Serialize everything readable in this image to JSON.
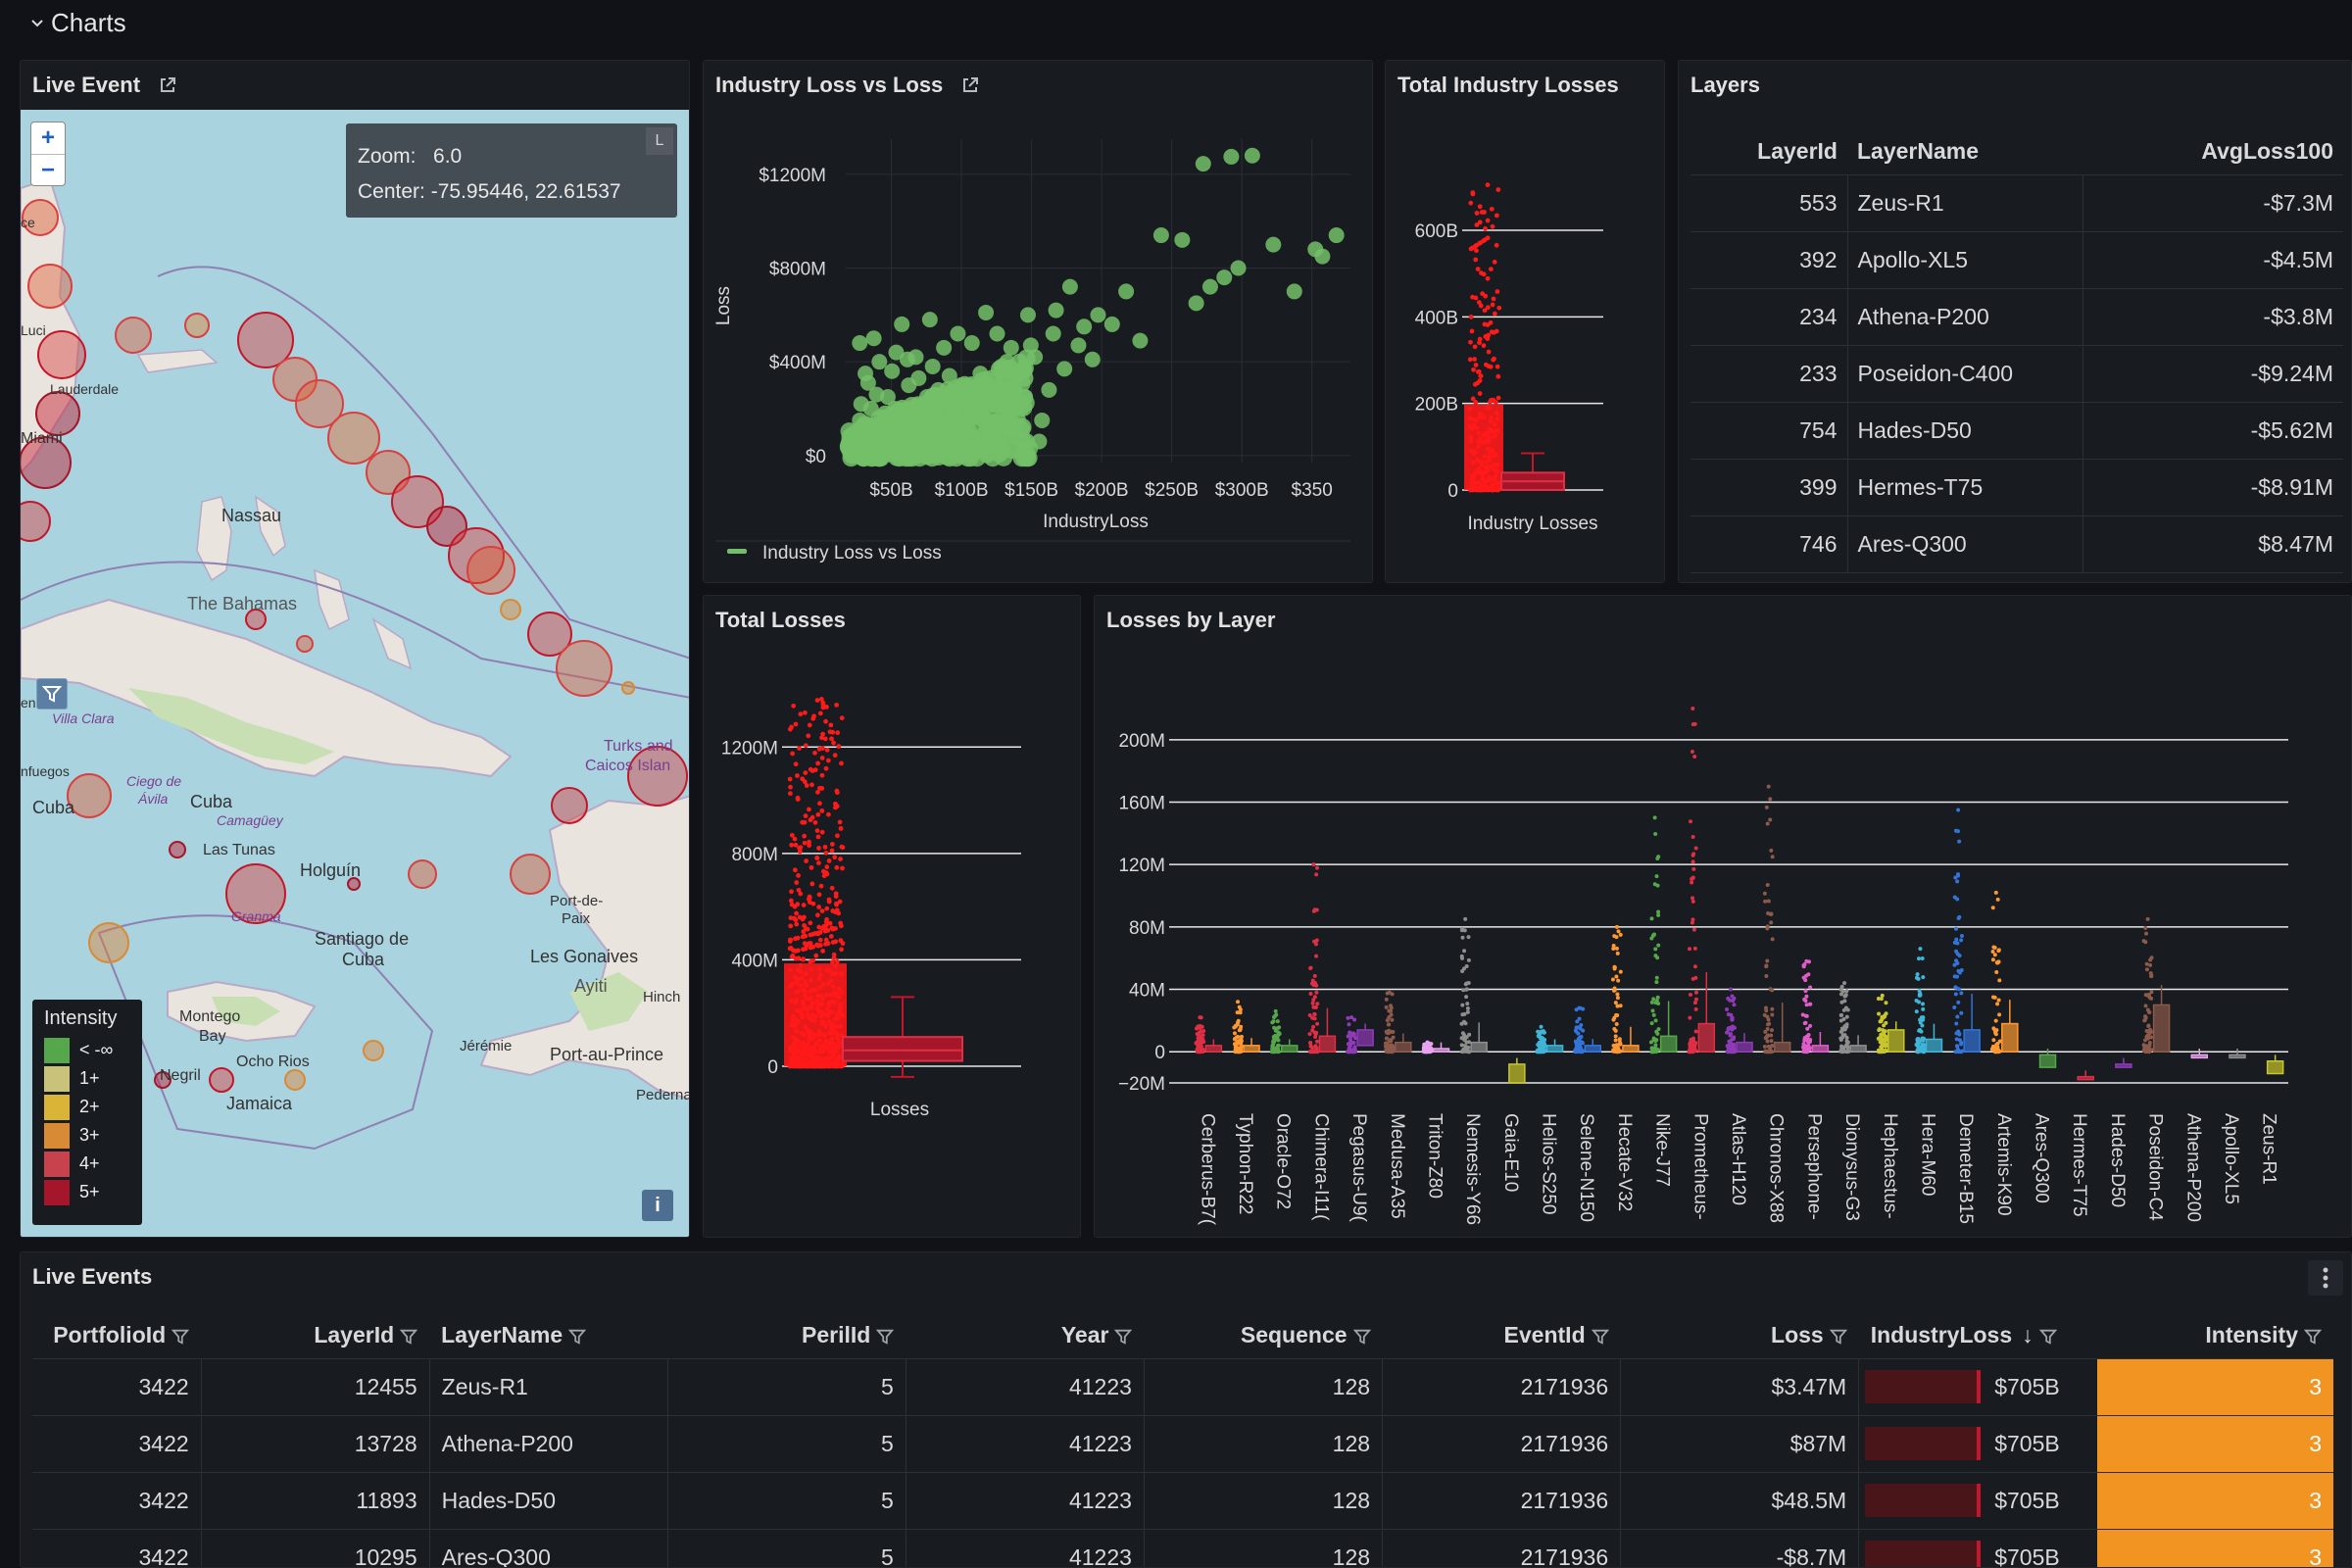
{
  "section": {
    "title": "Charts"
  },
  "live_event_panel": {
    "title": "Live Event",
    "zoom_in": "+",
    "zoom_out": "−",
    "zoom_label": "Zoom:",
    "zoom_value": "6.0",
    "center_label": "Center:",
    "center_value": "-75.95446, 22.61537",
    "layer_badge": "L",
    "info_button": "i",
    "place_labels": [
      "Nassau",
      "The Bahamas",
      "Cuba",
      "Camagüey",
      "Las Tunas",
      "Holguín",
      "Granma",
      "Santiago de",
      "Cuba",
      "Ciego de",
      "Ávila",
      "Villa Clara",
      "Cuba",
      "Montego",
      "Bay",
      "Ocho Rios",
      "Negril",
      "Jamaica",
      "Port-de-",
      "Paix",
      "Les Gonaives",
      "Ayiti",
      "Jérémie",
      "Port-au-Prince",
      "Pedernale",
      "Hinch",
      "Turks and",
      "Caicos Islan",
      "Miami",
      "Lauderdale",
      "Luci",
      "ce",
      "enas",
      "nfuegos"
    ],
    "legend": {
      "title": "Intensity",
      "items": [
        {
          "label": "< -∞",
          "color": "#56a64b"
        },
        {
          "label": "1+",
          "color": "#c8c27a"
        },
        {
          "label": "2+",
          "color": "#d9b436"
        },
        {
          "label": "3+",
          "color": "#d98a34"
        },
        {
          "label": "4+",
          "color": "#c8424e"
        },
        {
          "label": "5+",
          "color": "#a5162a"
        }
      ]
    }
  },
  "industry_scatter_panel": {
    "title": "Industry Loss vs Loss",
    "chart_data": {
      "type": "scatter",
      "title": "Industry Loss vs Loss",
      "xlabel": "IndustryLoss",
      "ylabel": "Loss",
      "x_ticks": [
        "$50B",
        "$100B",
        "$150B",
        "$200B",
        "$250B",
        "$300B",
        "$350"
      ],
      "y_ticks": [
        "$0",
        "$400M",
        "$800M",
        "$1200M"
      ],
      "xlim": [
        0,
        360
      ],
      "ylim": [
        -30,
        1350
      ],
      "series": [
        {
          "name": "Industry Loss vs Loss",
          "color": "#73bf69",
          "points": [
            [
              290,
              1280
            ],
            [
              275,
              1275
            ],
            [
              255,
              1245
            ],
            [
              350,
              940
            ],
            [
              335,
              880
            ],
            [
              320,
              700
            ],
            [
              340,
              850
            ],
            [
              305,
              900
            ],
            [
              225,
              940
            ],
            [
              240,
              920
            ],
            [
              280,
              800
            ],
            [
              270,
              760
            ],
            [
              260,
              720
            ],
            [
              250,
              650
            ],
            [
              200,
              700
            ],
            [
              190,
              560
            ],
            [
              160,
              720
            ],
            [
              150,
              620
            ],
            [
              130,
              600
            ],
            [
              115,
              400
            ],
            [
              80,
              520
            ],
            [
              60,
              580
            ],
            [
              40,
              560
            ],
            [
              20,
              500
            ],
            [
              10,
              480
            ],
            [
              210,
              490
            ],
            [
              170,
              550
            ],
            [
              180,
              600
            ],
            [
              100,
              610
            ],
            [
              90,
              480
            ],
            [
              70,
              460
            ],
            [
              50,
              420
            ],
            [
              45,
              300
            ],
            [
              35,
              200
            ],
            [
              30,
              250
            ],
            [
              25,
              120
            ],
            [
              20,
              80
            ],
            [
              15,
              40
            ],
            [
              12,
              10
            ],
            [
              10,
              150
            ],
            [
              18,
              200
            ],
            [
              28,
              180
            ],
            [
              38,
              90
            ],
            [
              48,
              60
            ],
            [
              55,
              140
            ],
            [
              60,
              30
            ],
            [
              65,
              220
            ],
            [
              72,
              120
            ],
            [
              78,
              50
            ],
            [
              85,
              250
            ],
            [
              92,
              180
            ],
            [
              98,
              90
            ],
            [
              105,
              260
            ],
            [
              110,
              130
            ],
            [
              120,
              330
            ],
            [
              125,
              200
            ],
            [
              135,
              420
            ],
            [
              140,
              150
            ],
            [
              145,
              280
            ],
            [
              85,
              60
            ],
            [
              70,
              20
            ],
            [
              40,
              25
            ],
            [
              22,
              260
            ],
            [
              16,
              310
            ],
            [
              33,
              360
            ],
            [
              52,
              330
            ],
            [
              62,
              380
            ],
            [
              74,
              340
            ],
            [
              96,
              350
            ],
            [
              108,
              520
            ],
            [
              118,
              460
            ],
            [
              132,
              470
            ],
            [
              148,
              520
            ],
            [
              166,
              470
            ],
            [
              176,
              410
            ],
            [
              156,
              370
            ],
            [
              128,
              250
            ],
            [
              88,
              150
            ],
            [
              58,
              95
            ],
            [
              42,
              140
            ],
            [
              26,
              45
            ],
            [
              13,
              100
            ],
            [
              19,
              20
            ],
            [
              31,
              15
            ],
            [
              45,
              5
            ],
            [
              67,
              70
            ],
            [
              80,
              110
            ],
            [
              102,
              40
            ],
            [
              115,
              80
            ],
            [
              138,
              60
            ],
            [
              44,
              410
            ],
            [
              36,
              440
            ],
            [
              24,
              400
            ],
            [
              14,
              350
            ],
            [
              11,
              220
            ],
            [
              58,
              250
            ],
            [
              66,
              280
            ],
            [
              76,
              190
            ],
            [
              54,
              200
            ],
            [
              82,
              300
            ]
          ]
        }
      ]
    }
  },
  "total_industry_losses_panel": {
    "title": "Total Industry Losses",
    "chart_data": {
      "type": "box",
      "xlabel": "Industry Losses",
      "y_ticks": [
        "0",
        "200B",
        "400B",
        "600B"
      ],
      "ylim": [
        0,
        720
      ],
      "box": {
        "q1": 0,
        "median": 20,
        "q3": 40,
        "whisker_low": 0,
        "whisker_high": 85
      },
      "outlier_max": 705
    }
  },
  "layers_panel": {
    "title": "Layers",
    "columns": [
      "LayerId",
      "LayerName",
      "AvgLoss100"
    ],
    "rows": [
      {
        "id": "553",
        "name": "Zeus-R1",
        "avg": "-$7.3M"
      },
      {
        "id": "392",
        "name": "Apollo-XL5",
        "avg": "-$4.5M"
      },
      {
        "id": "234",
        "name": "Athena-P200",
        "avg": "-$3.8M"
      },
      {
        "id": "233",
        "name": "Poseidon-C400",
        "avg": "-$9.24M"
      },
      {
        "id": "754",
        "name": "Hades-D50",
        "avg": "-$5.62M"
      },
      {
        "id": "399",
        "name": "Hermes-T75",
        "avg": "-$8.91M"
      },
      {
        "id": "746",
        "name": "Ares-Q300",
        "avg": "$8.47M"
      }
    ]
  },
  "total_losses_panel": {
    "title": "Total Losses",
    "chart_data": {
      "type": "box",
      "xlabel": "Losses",
      "y_ticks": [
        "0",
        "400M",
        "800M",
        "1200M"
      ],
      "ylim": [
        0,
        1400
      ],
      "box": {
        "q1": 20,
        "median": 60,
        "q3": 110,
        "whisker_low": -40,
        "whisker_high": 260
      },
      "outlier_max": 1380
    }
  },
  "losses_by_layer_panel": {
    "title": "Losses by Layer",
    "chart_data": {
      "type": "box",
      "y_ticks": [
        "−20M",
        "0",
        "40M",
        "80M",
        "120M",
        "160M",
        "200M"
      ],
      "ylim": [
        -25,
        220
      ],
      "categories": [
        "Cerberus-B7(",
        "Typhon-R22",
        "Oracle-O72",
        "Chimera-I11(",
        "Pegasus-U9(",
        "Medusa-A35",
        "Triton-Z80",
        "Nemesis-Y66",
        "Gaia-E10",
        "Helios-S250",
        "Selene-N150",
        "Hecate-V32",
        "Nike-J77",
        "Prometheus-",
        "Atlas-H120",
        "Chronos-X88",
        "Persephone-",
        "Dionysus-G3",
        "Hephaestus-",
        "Hera-M60",
        "Demeter-B15",
        "Artemis-K90",
        "Ares-Q300",
        "Hermes-T75",
        "Hades-D50",
        "Poseidon-C4",
        "Athena-P200",
        "Apollo-XL5",
        "Zeus-R1"
      ],
      "colors": [
        "#e02f44",
        "#ff9830",
        "#56a64b",
        "#e02f44",
        "#8f3bb8",
        "#8c5a4b",
        "#e8a2ef",
        "#8e8e8e",
        "#c8c62a",
        "#3fb5d8",
        "#3274d9",
        "#ff9830",
        "#56a64b",
        "#e02f44",
        "#8f3bb8",
        "#8c5a4b",
        "#e05dc9",
        "#8e8e8e",
        "#c8c62a",
        "#3fb5d8",
        "#3274d9",
        "#ff9830",
        "#56a64b",
        "#e02f44",
        "#8f3bb8",
        "#8c5a4b",
        "#e8a2ef",
        "#8e8e8e",
        "#c8c62a"
      ],
      "max_values": [
        22,
        32,
        26,
        120,
        22,
        38,
        6,
        85,
        -2,
        16,
        28,
        80,
        150,
        220,
        40,
        170,
        58,
        44,
        36,
        66,
        155,
        102,
        0,
        -16,
        0,
        85,
        0,
        0,
        0
      ],
      "box_low": [
        0,
        0,
        0,
        0,
        4,
        0,
        0,
        0,
        -20,
        0,
        0,
        0,
        0,
        0,
        0,
        0,
        0,
        0,
        0,
        0,
        0,
        0,
        -10,
        -16,
        -10,
        0,
        -2,
        -2,
        -14
      ],
      "box_high": [
        4,
        4,
        4,
        10,
        14,
        6,
        2,
        6,
        -8,
        4,
        4,
        4,
        10,
        18,
        6,
        6,
        4,
        4,
        14,
        8,
        14,
        18,
        -2,
        -16,
        -8,
        30,
        -2,
        -2,
        -6
      ]
    }
  },
  "live_events_panel": {
    "title": "Live Events",
    "columns": [
      "PortfolioId",
      "LayerId",
      "LayerName",
      "PerilId",
      "Year",
      "Sequence",
      "EventId",
      "Loss",
      "IndustryLoss",
      "Intensity"
    ],
    "sort_indicator": "↓",
    "rows": [
      {
        "portfolio": "3422",
        "layer": "12455",
        "name": "Zeus-R1",
        "peril": "5",
        "year": "41223",
        "seq": "128",
        "event": "2171936",
        "loss": "$3.47M",
        "industry": "$705B",
        "intensity": "3"
      },
      {
        "portfolio": "3422",
        "layer": "13728",
        "name": "Athena-P200",
        "peril": "5",
        "year": "41223",
        "seq": "128",
        "event": "2171936",
        "loss": "$87M",
        "industry": "$705B",
        "intensity": "3"
      },
      {
        "portfolio": "3422",
        "layer": "11893",
        "name": "Hades-D50",
        "peril": "5",
        "year": "41223",
        "seq": "128",
        "event": "2171936",
        "loss": "$48.5M",
        "industry": "$705B",
        "intensity": "3"
      },
      {
        "portfolio": "3422",
        "layer": "10295",
        "name": "Ares-Q300",
        "peril": "5",
        "year": "41223",
        "seq": "128",
        "event": "2171936",
        "loss": "-$8.7M",
        "industry": "$705B",
        "intensity": "3"
      }
    ]
  }
}
